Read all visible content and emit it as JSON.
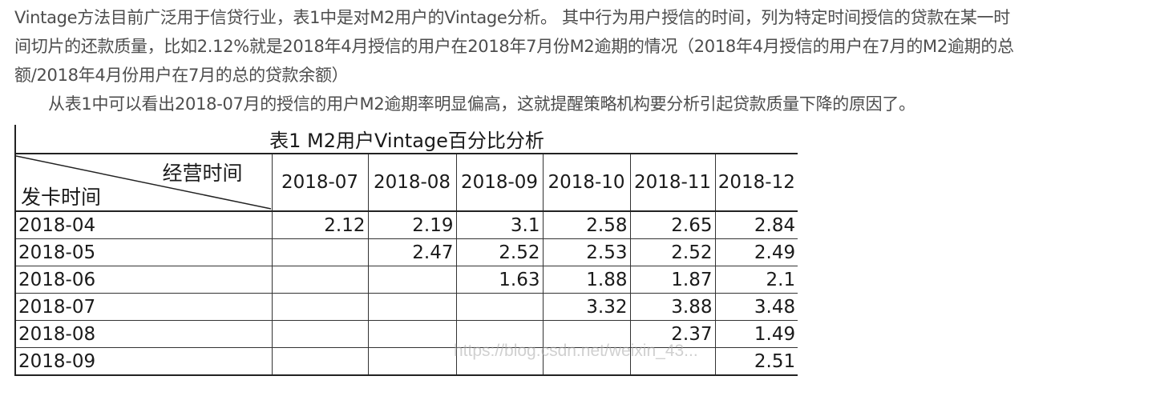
{
  "article": {
    "paragraph1_line1": "Vintage方法目前广泛用于信贷行业，表1中是对M2用户的Vintage分析。 其中行为用户授信的时间，列为特定时间授信的贷款在某一时",
    "paragraph1_line2": "间切片的还款质量，比如2.12%就是2018年4月授信的用户在2018年7月份M2逾期的情况（2018年4月授信的用户在7月的M2逾期的总",
    "paragraph1_line3": "额/2018年4月份用户在7月的总的贷款余额）",
    "paragraph2": "从表1中可以看出2018-07月的授信的用户M2逾期率明显偏高，这就提醒策略机构要分析引起贷款质量下降的原因了。"
  },
  "table": {
    "title": "表1 M2用户Vintage百分比分析",
    "corner_top": "经营时间",
    "corner_bottom": "发卡时间",
    "columns": [
      "2018-07",
      "2018-08",
      "2018-09",
      "2018-10",
      "2018-11",
      "2018-12"
    ],
    "rows": [
      {
        "label": "2018-04",
        "values": [
          "2.12",
          "2.19",
          "3.1",
          "2.58",
          "2.65",
          "2.84"
        ]
      },
      {
        "label": "2018-05",
        "values": [
          "",
          "2.47",
          "2.52",
          "2.53",
          "2.52",
          "2.49"
        ]
      },
      {
        "label": "2018-06",
        "values": [
          "",
          "",
          "1.63",
          "1.88",
          "1.87",
          "2.1"
        ]
      },
      {
        "label": "2018-07",
        "values": [
          "",
          "",
          "",
          "3.32",
          "3.88",
          "3.48"
        ]
      },
      {
        "label": "2018-08",
        "values": [
          "",
          "",
          "",
          "",
          "2.37",
          "1.49"
        ]
      },
      {
        "label": "2018-09",
        "values": [
          "",
          "",
          "",
          "",
          "",
          "2.51"
        ]
      }
    ],
    "watermark": "https://blog.csdn.net/weixin_43..."
  }
}
